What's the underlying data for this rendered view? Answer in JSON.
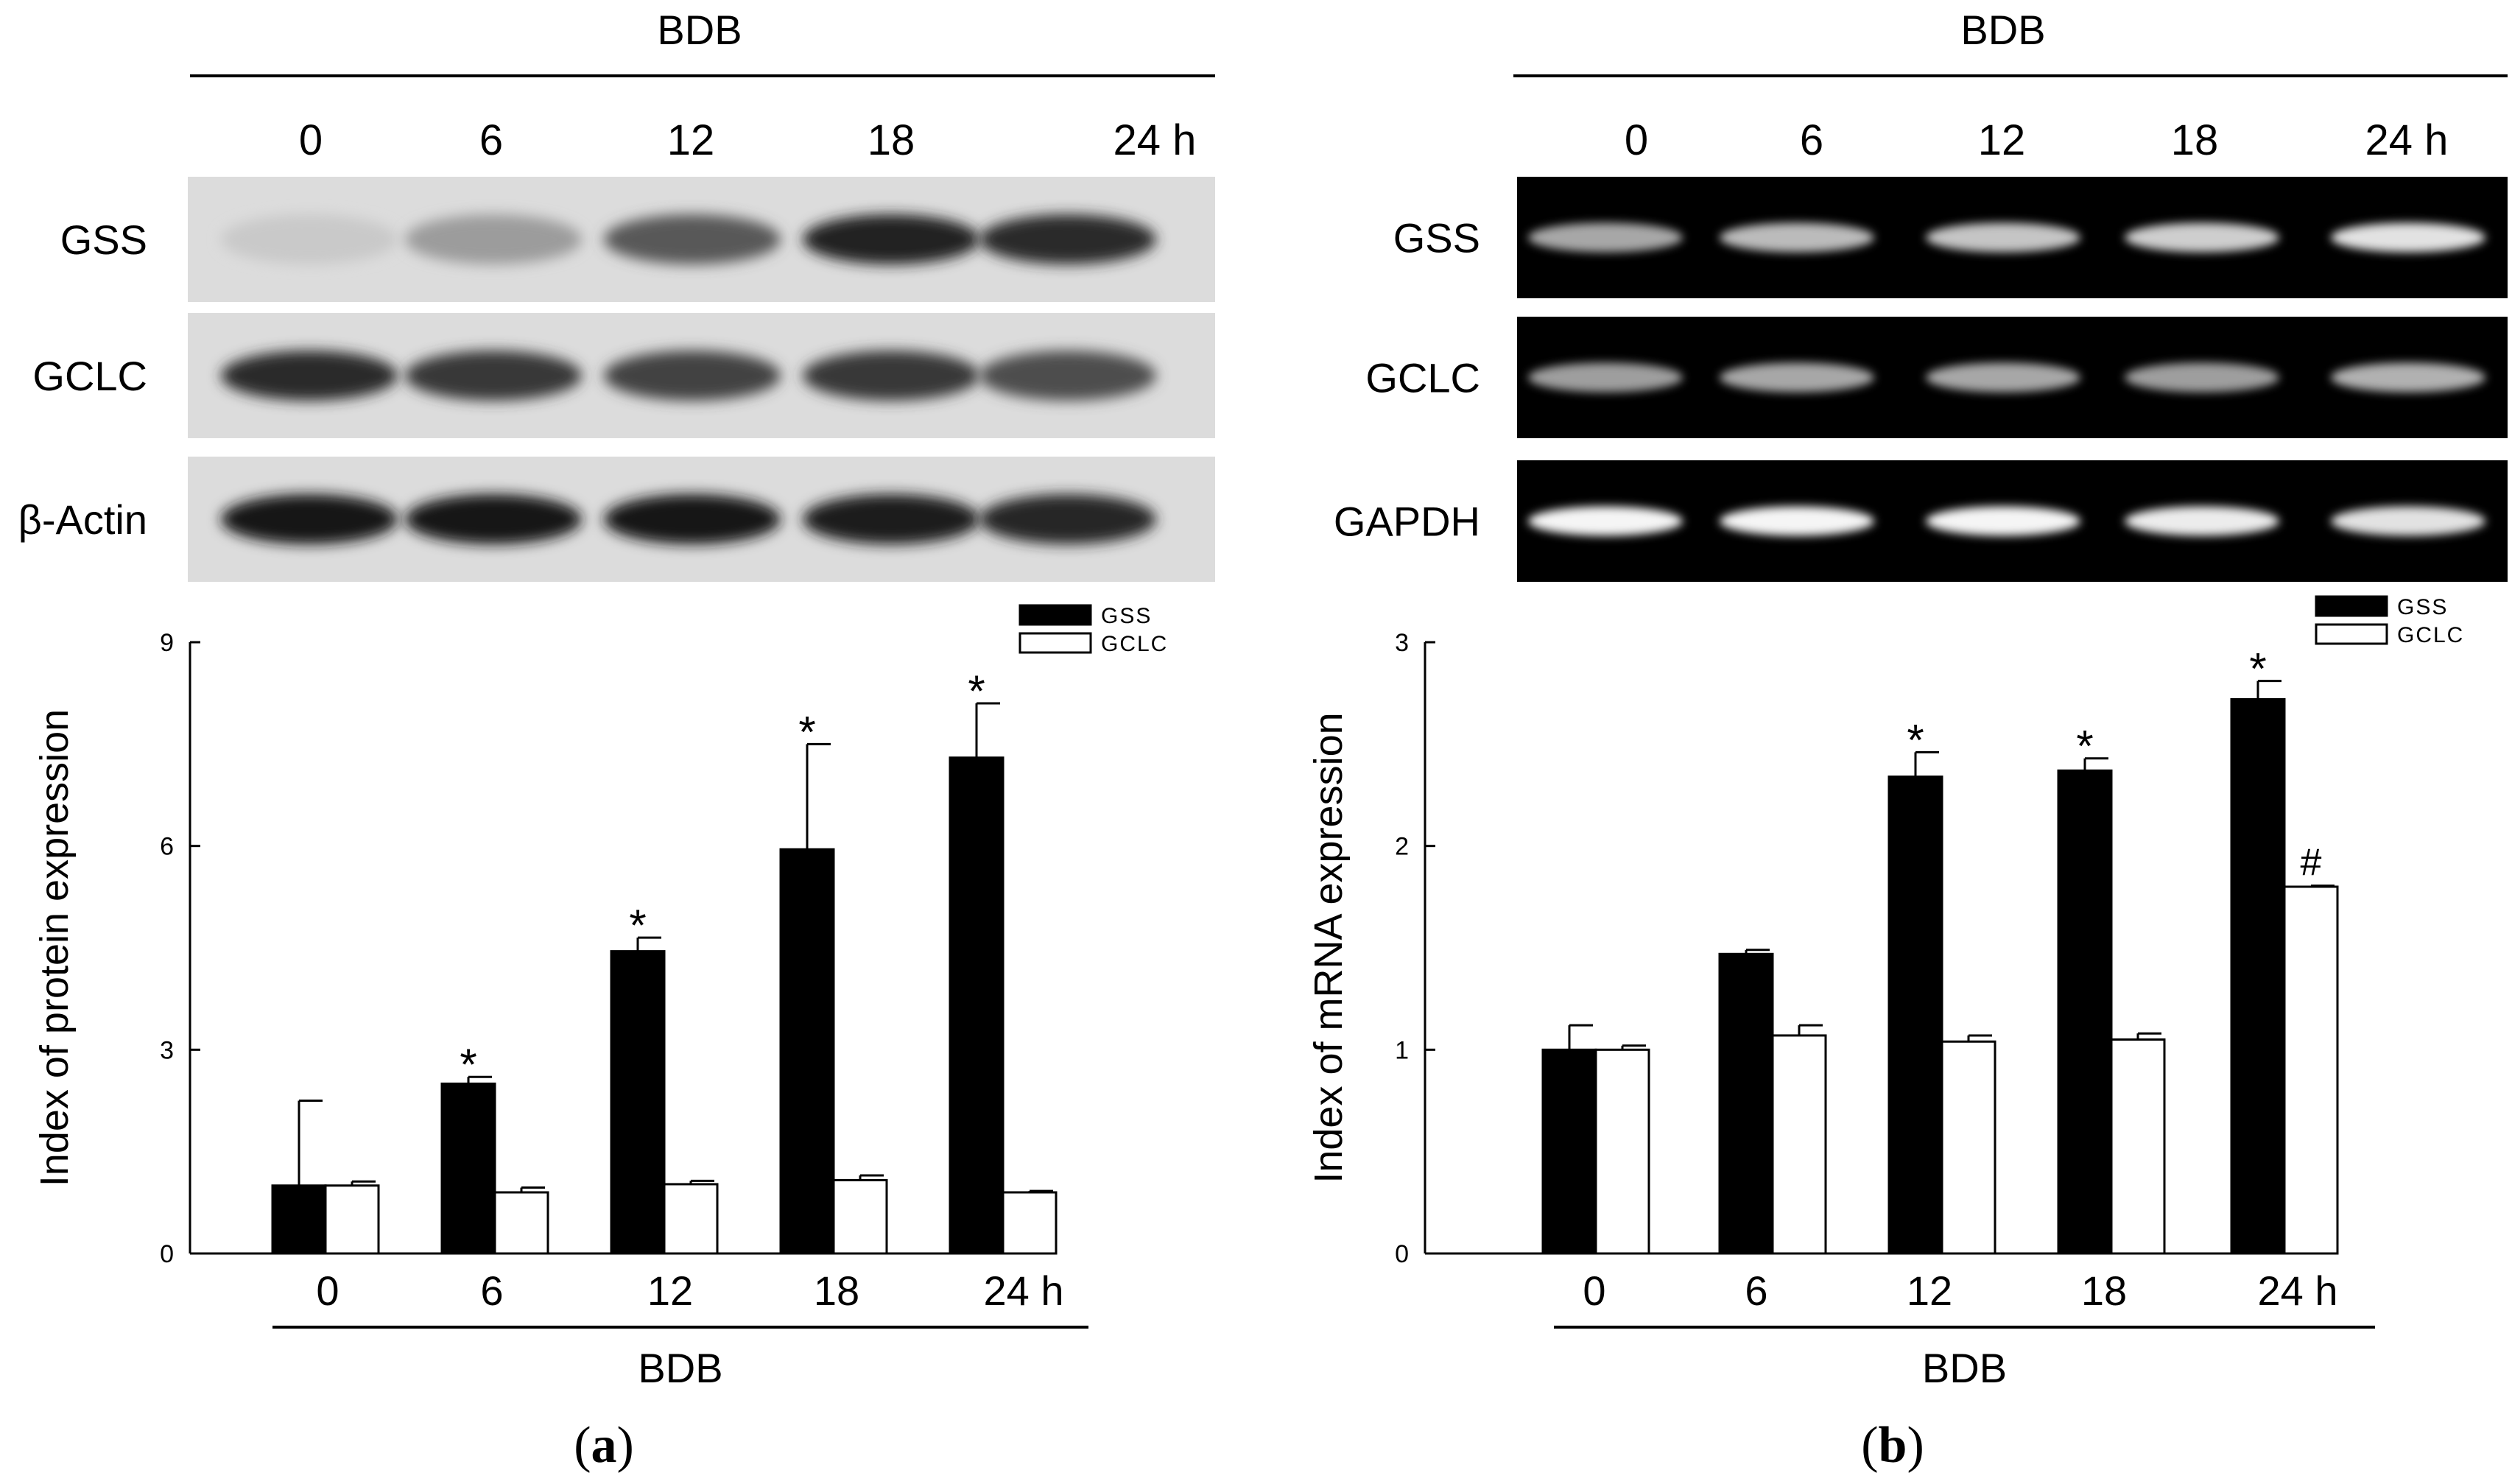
{
  "panels": [
    {
      "id": "a",
      "label": "a",
      "blot": {
        "treatment": "BDB",
        "lanes": [
          "0",
          "6",
          "12",
          "18",
          "24 h"
        ],
        "rows": [
          {
            "name": "GSS",
            "intensity": [
              0.15,
              0.35,
              0.65,
              0.9,
              0.85
            ]
          },
          {
            "name": "GCLC",
            "intensity": [
              0.85,
              0.8,
              0.75,
              0.8,
              0.7
            ]
          },
          {
            "name": "β-Actin",
            "intensity": [
              0.95,
              0.95,
              0.95,
              0.92,
              0.88
            ]
          }
        ],
        "style": "western"
      }
    },
    {
      "id": "b",
      "label": "b",
      "blot": {
        "treatment": "BDB",
        "lanes": [
          "0",
          "6",
          "12",
          "18",
          "24 h"
        ],
        "rows": [
          {
            "name": "GSS",
            "intensity": [
              0.55,
              0.65,
              0.7,
              0.75,
              0.85
            ]
          },
          {
            "name": "GCLC",
            "intensity": [
              0.5,
              0.55,
              0.55,
              0.5,
              0.6
            ]
          },
          {
            "name": "GAPDH",
            "intensity": [
              0.95,
              0.95,
              0.95,
              0.9,
              0.85
            ]
          }
        ],
        "style": "gel"
      }
    }
  ],
  "chart_data": [
    {
      "type": "bar",
      "categories": [
        "0",
        "6",
        "12",
        "18",
        "24 h"
      ],
      "xlabel": "BDB",
      "ylabel": "Index of protein expression",
      "ylim": [
        0,
        9
      ],
      "yticks": [
        "0",
        "3",
        "6",
        "9"
      ],
      "legend": "top-right",
      "series": [
        {
          "name": "GSS",
          "color": "#000000",
          "values": [
            1.0,
            2.5,
            4.45,
            5.95,
            7.3
          ],
          "errors": [
            1.25,
            0.1,
            0.2,
            1.55,
            0.8
          ],
          "annotations": [
            "",
            "*",
            "*",
            "*",
            "*"
          ]
        },
        {
          "name": "GCLC",
          "color": "#ffffff",
          "values": [
            1.0,
            0.9,
            1.02,
            1.08,
            0.9
          ],
          "errors": [
            0.06,
            0.07,
            0.05,
            0.07,
            0.02
          ],
          "annotations": [
            "",
            "",
            "",
            "",
            ""
          ]
        }
      ]
    },
    {
      "type": "bar",
      "categories": [
        "0",
        "6",
        "12",
        "18",
        "24 h"
      ],
      "xlabel": "BDB",
      "ylabel": "Index of mRNA expression",
      "ylim": [
        0,
        3
      ],
      "yticks": [
        "0",
        "1",
        "2",
        "3"
      ],
      "legend": "top-right",
      "series": [
        {
          "name": "GSS",
          "color": "#000000",
          "values": [
            1.0,
            1.47,
            2.34,
            2.37,
            2.72
          ],
          "errors": [
            0.12,
            0.02,
            0.12,
            0.06,
            0.09
          ],
          "annotations": [
            "",
            "",
            "*",
            "*",
            "*"
          ]
        },
        {
          "name": "GCLC",
          "color": "#ffffff",
          "values": [
            1.0,
            1.07,
            1.04,
            1.05,
            1.8
          ],
          "errors": [
            0.02,
            0.05,
            0.03,
            0.03,
            0.005
          ],
          "annotations": [
            "",
            "",
            "",
            "",
            "#"
          ]
        }
      ]
    }
  ]
}
